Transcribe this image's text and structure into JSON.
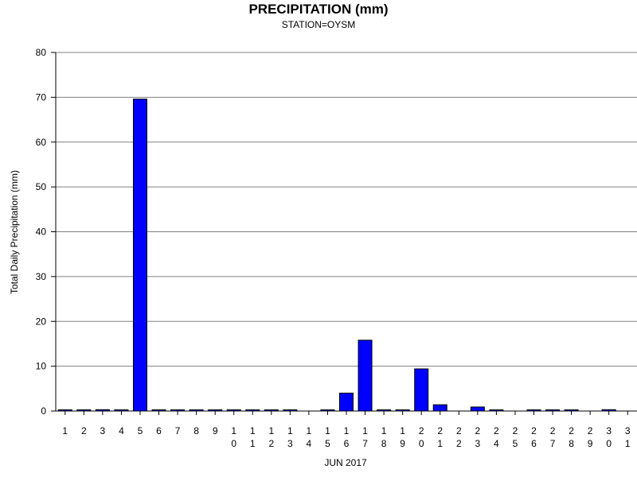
{
  "chart_data": {
    "type": "bar",
    "title": "PRECIPITATION (mm)",
    "subtitle": "STATION=OYSM",
    "xlabel": "JUN 2017",
    "ylabel": "Total Daily Precipitation (mm)",
    "ylim": [
      0,
      80
    ],
    "yticks": [
      "0",
      "10",
      "20",
      "30",
      "40",
      "50",
      "60",
      "70",
      "80"
    ],
    "grid": true,
    "categories": [
      "1",
      "2",
      "3",
      "4",
      "5",
      "6",
      "7",
      "8",
      "9",
      "10",
      "11",
      "12",
      "13",
      "14",
      "15",
      "16",
      "17",
      "18",
      "19",
      "20",
      "21",
      "22",
      "23",
      "24",
      "25",
      "26",
      "27",
      "28",
      "29",
      "30",
      "31"
    ],
    "values": [
      0,
      0,
      0.3,
      0,
      69.6,
      0,
      0,
      0,
      0,
      0,
      0,
      0,
      0,
      null,
      0,
      4.0,
      15.8,
      0,
      0,
      9.4,
      1.4,
      null,
      0.9,
      0,
      null,
      0,
      0,
      0,
      null,
      0.3,
      null
    ],
    "colors": {
      "bar": "#0000ff",
      "bar_edge": "#000000",
      "grid": "#808080",
      "axis": "#000000"
    }
  }
}
